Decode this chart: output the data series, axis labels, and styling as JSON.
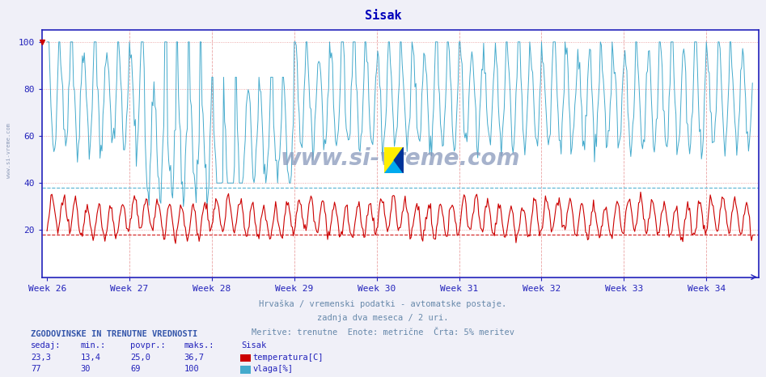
{
  "title": "Sisak",
  "title_color": "#0000bb",
  "background_color": "#f0f0f8",
  "plot_bg_color": "#ffffff",
  "xlabel_lines": [
    "Hrvaška / vremenski podatki - avtomatske postaje.",
    "zadnja dva meseca / 2 uri.",
    "Meritve: trenutne  Enote: metrične  Črta: 5% meritev"
  ],
  "xlabel_color": "#6688aa",
  "week_labels": [
    "Week 26",
    "Week 27",
    "Week 28",
    "Week 29",
    "Week 30",
    "Week 31",
    "Week 32",
    "Week 33",
    "Week 34"
  ],
  "week_positions": [
    0,
    84,
    168,
    252,
    336,
    420,
    504,
    588,
    672
  ],
  "yticks": [
    20,
    40,
    60,
    80,
    100
  ],
  "ylim": [
    0,
    105
  ],
  "xlim": [
    -5,
    725
  ],
  "grid_color_v": "#dd6666",
  "grid_color_h": "#dd6666",
  "hgrid_color": "#8888bb",
  "axis_color": "#2222bb",
  "temp_color": "#cc0000",
  "hum_color": "#44aacc",
  "temp_5pct_value": 18.0,
  "hum_5pct_value": 38.0,
  "watermark_text": "www.si-vreme.com",
  "watermark_color": "#8899bb",
  "legend_title": "ZGODOVINSKE IN TRENUTNE VREDNOSTI",
  "legend_headers": [
    "sedaj:",
    "min.:",
    "povpr.:",
    "maks.:",
    "Sisak"
  ],
  "legend_rows": [
    {
      "color": "#cc0000",
      "values": [
        "23,3",
        "13,4",
        "25,0",
        "36,7"
      ],
      "label": "temperatura[C]"
    },
    {
      "color": "#44aacc",
      "values": [
        "77",
        "30",
        "69",
        "100"
      ],
      "label": "vlaga[%]"
    }
  ],
  "n_points": 720
}
